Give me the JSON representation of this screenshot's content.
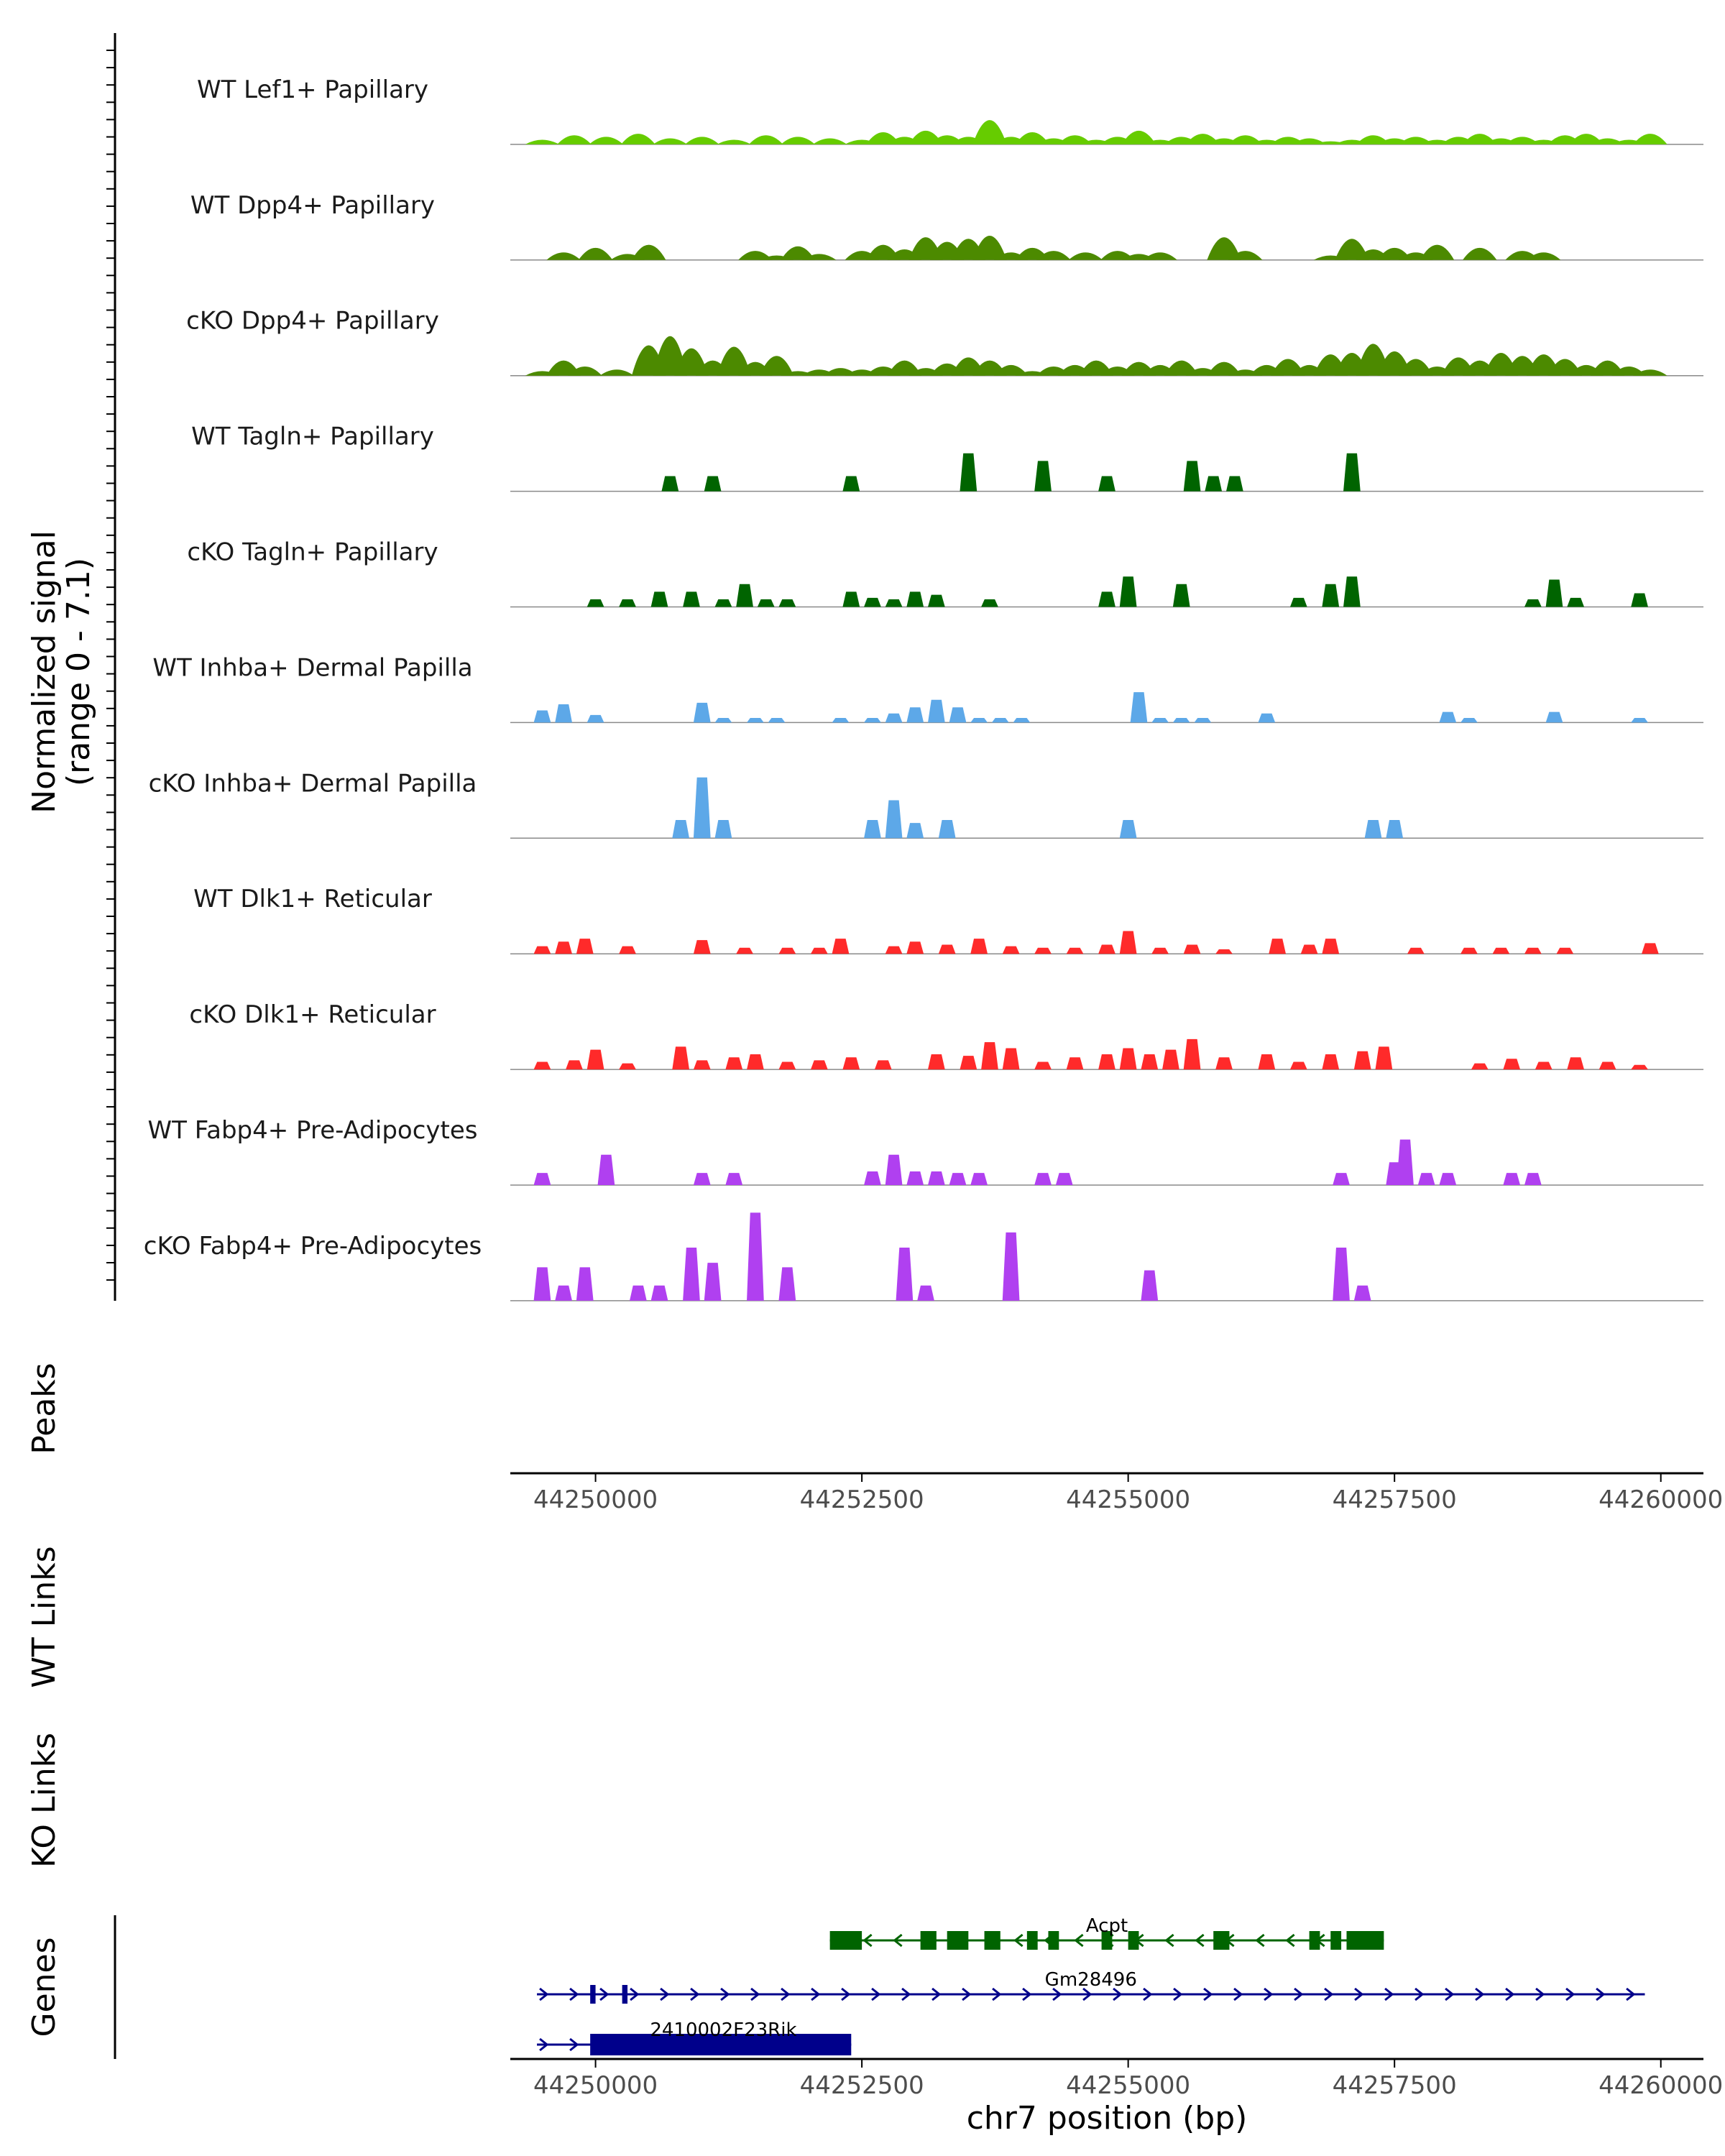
{
  "chart_data": {
    "type": "area",
    "description_free": true,
    "signal_axis_label": "Normalized signal",
    "signal_axis_range_label": "(range 0 - 7.1)",
    "signal_range": [
      0,
      7.1
    ],
    "x_axis_title": "chr7 position (bp)",
    "x_range": [
      44249200,
      44260400
    ],
    "x_ticks": [
      44250000,
      44252500,
      44255000,
      44257500,
      44260000
    ],
    "x_tick_labels": [
      "44250000",
      "44252500",
      "44255000",
      "44257500",
      "44260000"
    ],
    "track_labels": {
      "peaks": "Peaks",
      "wt_links": "WT Links",
      "ko_links": "KO Links",
      "genes": "Genes"
    },
    "coverage_tracks": [
      {
        "name": "WT Lef1+ Papillary",
        "color": "#66CC00",
        "mode": "smooth",
        "x": [
          44249500,
          44249800,
          44250100,
          44250400,
          44250700,
          44251000,
          44251300,
          44251600,
          44251900,
          44252200,
          44252500,
          44252700,
          44252900,
          44253100,
          44253300,
          44253500,
          44253700,
          44253900,
          44254100,
          44254300,
          44254500,
          44254700,
          44254900,
          44255100,
          44255300,
          44255500,
          44255700,
          44255900,
          44256100,
          44256300,
          44256500,
          44256700,
          44256900,
          44257100,
          44257300,
          44257500,
          44257700,
          44257900,
          44258100,
          44258300,
          44258500,
          44258700,
          44258900,
          44259100,
          44259300,
          44259500,
          44259700,
          44259900
        ],
        "y": [
          0.3,
          0.6,
          0.5,
          0.7,
          0.4,
          0.5,
          0.3,
          0.6,
          0.5,
          0.4,
          0.3,
          0.8,
          0.5,
          0.9,
          0.6,
          0.5,
          1.6,
          0.5,
          0.8,
          0.4,
          0.6,
          0.3,
          0.5,
          0.9,
          0.3,
          0.5,
          0.7,
          0.4,
          0.6,
          0.3,
          0.5,
          0.4,
          0.2,
          0.3,
          0.6,
          0.4,
          0.5,
          0.3,
          0.5,
          0.7,
          0.4,
          0.5,
          0.3,
          0.6,
          0.7,
          0.4,
          0.3,
          0.7
        ]
      },
      {
        "name": "WT Dpp4+ Papillary",
        "color": "#4C8A00",
        "mode": "smooth",
        "x": [
          44249500,
          44249700,
          44250000,
          44250300,
          44250500,
          44250700,
          44250900,
          44251200,
          44251500,
          44251700,
          44251900,
          44252100,
          44252300,
          44252500,
          44252700,
          44252900,
          44253100,
          44253300,
          44253500,
          44253700,
          44253900,
          44254100,
          44254300,
          44254600,
          44254900,
          44255100,
          44255300,
          44255500,
          44255700,
          44255900,
          44256100,
          44256300,
          44256500,
          44256700,
          44256900,
          44257100,
          44257300,
          44257500,
          44257700,
          44257900,
          44258100,
          44258300,
          44258500,
          44258700,
          44258900,
          44259100
        ],
        "y": [
          0,
          0.5,
          0.8,
          0.4,
          1.0,
          0,
          0,
          0,
          0.6,
          0.3,
          0.9,
          0.4,
          0,
          0.6,
          1.0,
          0.7,
          1.5,
          1.2,
          1.4,
          1.6,
          0.5,
          0.8,
          0.6,
          0.5,
          0.6,
          0.4,
          0.5,
          0,
          0,
          1.5,
          0.6,
          0,
          0,
          0,
          0.3,
          1.4,
          0.7,
          0.8,
          0.5,
          1.0,
          0,
          0.8,
          0,
          0.6,
          0.5,
          0
        ]
      },
      {
        "name": "cKO Dpp4+ Papillary",
        "color": "#4C8A00",
        "mode": "smooth",
        "x": [
          44249500,
          44249700,
          44249900,
          44250200,
          44250500,
          44250700,
          44250900,
          44251100,
          44251300,
          44251500,
          44251700,
          44251900,
          44252100,
          44252300,
          44252500,
          44252700,
          44252900,
          44253100,
          44253300,
          44253500,
          44253700,
          44253900,
          44254100,
          44254300,
          44254500,
          44254700,
          44254900,
          44255100,
          44255300,
          44255500,
          44255700,
          44255900,
          44256100,
          44256300,
          44256500,
          44256700,
          44256900,
          44257100,
          44257300,
          44257500,
          44257700,
          44257900,
          44258100,
          44258300,
          44258500,
          44258700,
          44258900,
          44259100,
          44259300,
          44259500,
          44259700,
          44259900
        ],
        "y": [
          0.3,
          1.0,
          0.6,
          0.4,
          2.0,
          2.6,
          1.8,
          1.0,
          1.9,
          0.9,
          1.3,
          0.3,
          0.4,
          0.5,
          0.4,
          0.6,
          1.0,
          0.5,
          0.8,
          1.2,
          1.0,
          0.7,
          0.3,
          0.6,
          0.7,
          1.0,
          0.6,
          0.9,
          0.7,
          1.0,
          0.5,
          0.9,
          0.4,
          0.7,
          1.1,
          0.7,
          1.4,
          1.5,
          2.1,
          1.6,
          1.1,
          0.6,
          1.2,
          1.0,
          1.5,
          1.3,
          1.4,
          1.1,
          0.7,
          1.0,
          0.6,
          0.4
        ]
      },
      {
        "name": "WT Tagln+ Papillary",
        "color": "#006400",
        "mode": "blocks",
        "x": [
          44250500,
          44250700,
          44250900,
          44251100,
          44252200,
          44252400,
          44253300,
          44253500,
          44253700,
          44254200,
          44254400,
          44254800,
          44255600,
          44255800,
          44256000,
          44256200,
          44257100,
          44257300
        ],
        "y": [
          0,
          1.0,
          0,
          1.0,
          0,
          1.0,
          0,
          2.5,
          0,
          2.0,
          0,
          1.0,
          2.0,
          1.0,
          1.0,
          0,
          2.5,
          0
        ]
      },
      {
        "name": "cKO Tagln+ Papillary",
        "color": "#006400",
        "mode": "blocks",
        "x": [
          44249700,
          44250000,
          44250300,
          44250600,
          44250900,
          44251200,
          44251400,
          44251600,
          44251800,
          44252400,
          44252600,
          44252800,
          44253000,
          44253200,
          44253400,
          44253700,
          44254800,
          44255000,
          44255200,
          44255500,
          44255700,
          44256600,
          44256900,
          44257100,
          44257300,
          44258800,
          44259000,
          44259200,
          44259400,
          44259800
        ],
        "y": [
          0,
          0.5,
          0.5,
          1.0,
          1.0,
          0.5,
          1.5,
          0.5,
          0.5,
          1.0,
          0.6,
          0.5,
          1.0,
          0.8,
          0,
          0.5,
          1.0,
          2.0,
          0,
          1.5,
          0,
          0.6,
          1.5,
          2.0,
          0,
          0.5,
          1.8,
          0.6,
          0,
          0.9
        ]
      },
      {
        "name": "WT Inhba+ Dermal Papilla",
        "color": "#5DA8E8",
        "mode": "blocks",
        "x": [
          44249500,
          44249700,
          44250000,
          44251000,
          44251200,
          44251500,
          44251700,
          44252300,
          44252600,
          44252800,
          44253000,
          44253200,
          44253400,
          44253600,
          44253800,
          44254000,
          44255100,
          44255300,
          44255500,
          44255700,
          44256300,
          44257000,
          44258000,
          44258200,
          44259000,
          44259200,
          44259800
        ],
        "y": [
          0.8,
          1.2,
          0.5,
          1.3,
          0.3,
          0.3,
          0.3,
          0.3,
          0.3,
          0.6,
          1.0,
          1.5,
          1.0,
          0.3,
          0.3,
          0.3,
          2.0,
          0.3,
          0.3,
          0.3,
          0.6,
          0,
          0.7,
          0.3,
          0.7,
          0,
          0.3
        ]
      },
      {
        "name": "cKO Inhba+ Dermal Papilla",
        "color": "#5DA8E8",
        "mode": "blocks",
        "x": [
          44250800,
          44251000,
          44251200,
          44252600,
          44252800,
          44253000,
          44253300,
          44255000,
          44257300,
          44257500
        ],
        "y": [
          1.2,
          4.0,
          1.2,
          1.2,
          2.5,
          1.0,
          1.2,
          1.2,
          1.2,
          1.2
        ]
      },
      {
        "name": "WT Dlk1+ Reticular",
        "color": "#FF2A2A",
        "mode": "blocks",
        "x": [
          44249500,
          44249700,
          44249900,
          44250300,
          44250800,
          44251000,
          44251400,
          44251800,
          44252100,
          44252300,
          44252800,
          44253000,
          44253300,
          44253600,
          44253900,
          44254200,
          44254500,
          44254800,
          44255000,
          44255300,
          44255600,
          44255900,
          44256400,
          44256700,
          44256900,
          44257300,
          44257700,
          44258200,
          44258500,
          44258800,
          44259100,
          44259900
        ],
        "y": [
          0.5,
          0.8,
          1.0,
          0.5,
          0,
          0.9,
          0.4,
          0.4,
          0.4,
          1.0,
          0.5,
          0.8,
          0.6,
          1.0,
          0.5,
          0.4,
          0.4,
          0.6,
          1.5,
          0.4,
          0.6,
          0.3,
          1.0,
          0.6,
          1.0,
          0,
          0.4,
          0.4,
          0.4,
          0.4,
          0.4,
          0.7
        ]
      },
      {
        "name": "cKO Dlk1+ Reticular",
        "color": "#FF2A2A",
        "mode": "blocks",
        "x": [
          44249500,
          44249800,
          44250000,
          44250300,
          44250500,
          44250800,
          44251000,
          44251300,
          44251500,
          44251800,
          44252100,
          44252400,
          44252700,
          44253000,
          44253200,
          44253500,
          44253700,
          44253900,
          44254200,
          44254500,
          44254800,
          44255000,
          44255200,
          44255400,
          44255600,
          44255900,
          44256100,
          44256300,
          44256600,
          44256900,
          44257200,
          44257400,
          44257700,
          44258000,
          44258300,
          44258600,
          44258900,
          44259200,
          44259500,
          44259800
        ],
        "y": [
          0.5,
          0.6,
          1.3,
          0.4,
          0,
          1.5,
          0.6,
          0.8,
          1.0,
          0.5,
          0.6,
          0.8,
          0.6,
          0,
          1.0,
          0.9,
          1.8,
          1.4,
          0.5,
          0.8,
          1.0,
          1.4,
          1.0,
          1.3,
          2.0,
          0.8,
          0,
          1.0,
          0.5,
          1.0,
          1.2,
          1.5,
          0,
          0,
          0.4,
          0.7,
          0.5,
          0.8,
          0.5,
          0.3
        ]
      },
      {
        "name": "WT Fabp4+ Pre-Adipocytes",
        "color": "#B040F0",
        "mode": "blocks",
        "x": [
          44249500,
          44249800,
          44250100,
          44251000,
          44251300,
          44252600,
          44252800,
          44253000,
          44253200,
          44253400,
          44253600,
          44254200,
          44254400,
          44257000,
          44257200,
          44257500,
          44257600,
          44257800,
          44258000,
          44258200,
          44258600,
          44258800
        ],
        "y": [
          0.8,
          0,
          2.0,
          0.8,
          0.8,
          0.9,
          2.0,
          0.9,
          0.9,
          0.8,
          0.8,
          0.8,
          0.8,
          0.8,
          0,
          1.5,
          3.0,
          0.8,
          0.8,
          0,
          0.8,
          0.8
        ]
      },
      {
        "name": "cKO Fabp4+ Pre-Adipocytes",
        "color": "#B040F0",
        "mode": "blocks",
        "x": [
          44249500,
          44249700,
          44249900,
          44250400,
          44250600,
          44250900,
          44251100,
          44251500,
          44251800,
          44252900,
          44253100,
          44253900,
          44255200,
          44257000,
          44257200
        ],
        "y": [
          2.2,
          1.0,
          2.2,
          1.0,
          1.0,
          3.5,
          2.5,
          5.8,
          2.2,
          3.5,
          1.0,
          4.5,
          2.0,
          3.5,
          1.0
        ]
      }
    ],
    "genes": [
      {
        "name": "Acpt",
        "color": "#006400",
        "strand": "-",
        "start": 44252200,
        "end": 44257400
      },
      {
        "name": "Gm28496",
        "color": "#00008B",
        "strand": "+",
        "start": 44249450,
        "end": 44259850
      },
      {
        "name": "2410002F23Rik",
        "color": "#00008B",
        "strand": "+",
        "start": 44249450,
        "end": 44252400
      }
    ]
  }
}
